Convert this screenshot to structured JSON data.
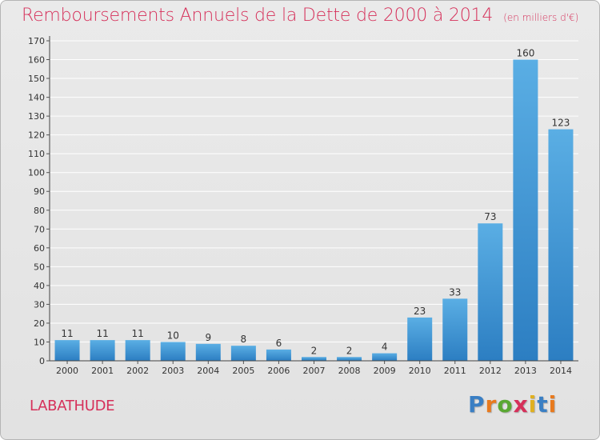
{
  "title": "Remboursements Annuels de la Dette de 2000 à 2014",
  "unit": "(en milliers d'€)",
  "commune": "LABATHUDE",
  "brand": {
    "text": "Proxiti",
    "letter_colors": [
      "#3a7fc4",
      "#e87a1e",
      "#5aa832",
      "#d6305a",
      "#e0b020",
      "#3a7fc4",
      "#e87a1e"
    ]
  },
  "colors": {
    "bar_light": "#5aaee4",
    "bar_dark": "#2c7ec2",
    "title": "#d6305a",
    "grid": "#ffffff"
  },
  "chart_data": {
    "type": "bar",
    "categories": [
      "2000",
      "2001",
      "2002",
      "2003",
      "2004",
      "2005",
      "2006",
      "2007",
      "2008",
      "2009",
      "2010",
      "2011",
      "2012",
      "2013",
      "2014"
    ],
    "values": [
      11,
      11,
      11,
      10,
      9,
      8,
      6,
      2,
      2,
      4,
      23,
      33,
      73,
      160,
      123
    ],
    "ylim": [
      0,
      170
    ],
    "yticks": [
      0,
      10,
      20,
      30,
      40,
      50,
      60,
      70,
      80,
      90,
      100,
      110,
      120,
      130,
      140,
      150,
      160,
      170
    ],
    "grid": true,
    "data_labels": true
  }
}
